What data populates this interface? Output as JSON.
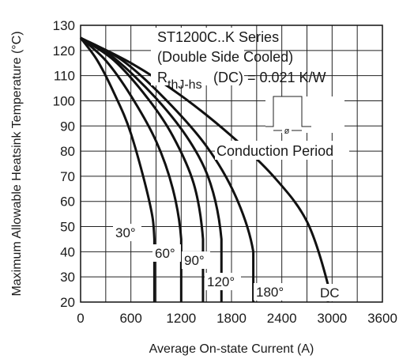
{
  "chart_data": {
    "type": "line",
    "title": "",
    "xlabel": "Average On-state Current (A)",
    "ylabel": "Maximum Allowable Heatsink Temperature (°C)",
    "xlim": [
      0,
      3600
    ],
    "ylim": [
      20,
      130
    ],
    "x_ticks": [
      "0",
      "600",
      "1200",
      "1800",
      "2400",
      "3000",
      "3600"
    ],
    "y_ticks": [
      "130",
      "120",
      "110",
      "100",
      "90",
      "80",
      "70",
      "60",
      "50",
      "40",
      "30",
      "20"
    ],
    "grid": true,
    "annotations": {
      "series_line1": "ST1200C..K Series",
      "series_line2": "(Double Side Cooled)",
      "rth_symbol": "R",
      "rth_subscript": "thJ-hs",
      "rth_value": "(DC) = 0.021 K/W",
      "conduction_label": "Conduction Period",
      "waveform_symbol": "ø"
    },
    "series": [
      {
        "name": "30°",
        "points": [
          [
            0,
            125
          ],
          [
            200,
            116
          ],
          [
            400,
            103
          ],
          [
            600,
            87
          ],
          [
            820,
            60
          ],
          [
            880,
            45
          ],
          [
            880,
            20
          ]
        ]
      },
      {
        "name": "60°",
        "points": [
          [
            0,
            125
          ],
          [
            300,
            116
          ],
          [
            600,
            102
          ],
          [
            900,
            84
          ],
          [
            1100,
            65
          ],
          [
            1200,
            45
          ],
          [
            1200,
            20
          ]
        ]
      },
      {
        "name": "90°",
        "points": [
          [
            0,
            125
          ],
          [
            400,
            116
          ],
          [
            800,
            101
          ],
          [
            1100,
            86
          ],
          [
            1350,
            67
          ],
          [
            1460,
            45
          ],
          [
            1460,
            20
          ]
        ]
      },
      {
        "name": "120°",
        "points": [
          [
            0,
            125
          ],
          [
            400,
            117
          ],
          [
            900,
            101
          ],
          [
            1300,
            84
          ],
          [
            1550,
            67
          ],
          [
            1680,
            45
          ],
          [
            1680,
            20
          ]
        ]
      },
      {
        "name": "180°",
        "points": [
          [
            0,
            125
          ],
          [
            500,
            116
          ],
          [
            1000,
            101
          ],
          [
            1500,
            82
          ],
          [
            1850,
            62
          ],
          [
            2060,
            40
          ],
          [
            2060,
            20
          ]
        ]
      },
      {
        "name": "DC",
        "points": [
          [
            0,
            125
          ],
          [
            600,
            115
          ],
          [
            1200,
            102
          ],
          [
            1800,
            86
          ],
          [
            2300,
            70
          ],
          [
            2700,
            52
          ],
          [
            2950,
            27
          ],
          [
            2950,
            20
          ]
        ]
      }
    ]
  }
}
